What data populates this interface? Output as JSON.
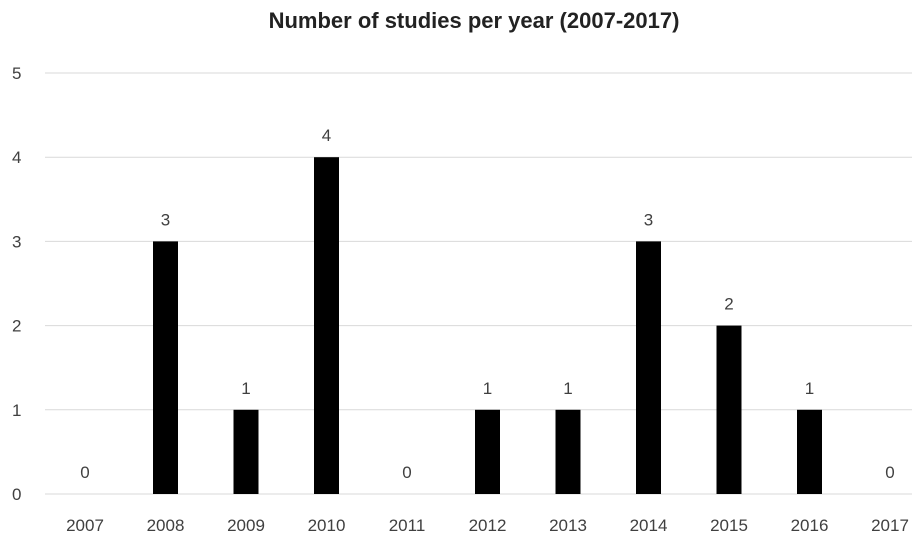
{
  "chart_data": {
    "type": "bar",
    "title": "Number of studies per year (2007-2017)",
    "categories": [
      "2007",
      "2008",
      "2009",
      "2010",
      "2011",
      "2012",
      "2013",
      "2014",
      "2015",
      "2016",
      "2017"
    ],
    "values": [
      0,
      3,
      1,
      4,
      0,
      1,
      1,
      3,
      2,
      1,
      0
    ],
    "data_labels": [
      "0",
      "3",
      "1",
      "4",
      "0",
      "1",
      "1",
      "3",
      "2",
      "1",
      "0"
    ],
    "yticks": [
      "0",
      "1",
      "2",
      "3",
      "4",
      "5"
    ],
    "ylim": [
      0,
      5
    ],
    "xlabel": "",
    "ylabel": "",
    "grid": true,
    "legend": "none",
    "bar_color": "#000000",
    "grid_color": "#d9d9d9",
    "text_color": "#404040"
  }
}
